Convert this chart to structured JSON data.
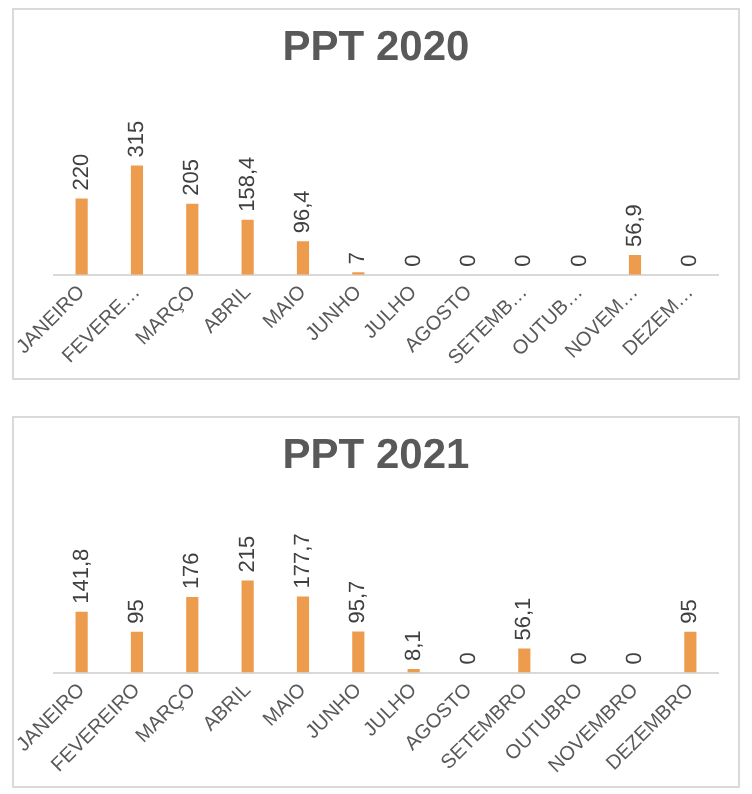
{
  "chart_data": [
    {
      "type": "bar",
      "title": "PPT 2020",
      "categories": [
        "JANEIRO",
        "FEVERE…",
        "MARÇO",
        "ABRIL",
        "MAIO",
        "JUNHO",
        "JULHO",
        "AGOSTO",
        "SETEMB…",
        "OUTUB…",
        "NOVEM…",
        "DEZEM…"
      ],
      "values": [
        220,
        315,
        205,
        158.4,
        96.4,
        7,
        0,
        0,
        0,
        0,
        56.9,
        0
      ],
      "value_labels": [
        "220",
        "315",
        "205",
        "158,4",
        "96,4",
        "7",
        "0",
        "0",
        "0",
        "0",
        "56,9",
        "0"
      ],
      "color": "#ed9b4d",
      "grid": false,
      "legend": false,
      "tick_labels": "x"
    },
    {
      "type": "bar",
      "title": "PPT 2021",
      "categories": [
        "JANEIRO",
        "FEVEREIRO",
        "MARÇO",
        "ABRIL",
        "MAIO",
        "JUNHO",
        "JULHO",
        "AGOSTO",
        "SETEMBRO",
        "OUTUBRO",
        "NOVEMBRO",
        "DEZEMBRO"
      ],
      "values": [
        141.8,
        95,
        176,
        215,
        177.7,
        95.7,
        8.1,
        0,
        56.1,
        0,
        0,
        95
      ],
      "value_labels": [
        "141,8",
        "95",
        "176",
        "215",
        "177,7",
        "95,7",
        "8,1",
        "0",
        "56,1",
        "0",
        "0",
        "95"
      ],
      "color": "#ed9b4d",
      "grid": false,
      "legend": false,
      "tick_labels": "x"
    }
  ]
}
